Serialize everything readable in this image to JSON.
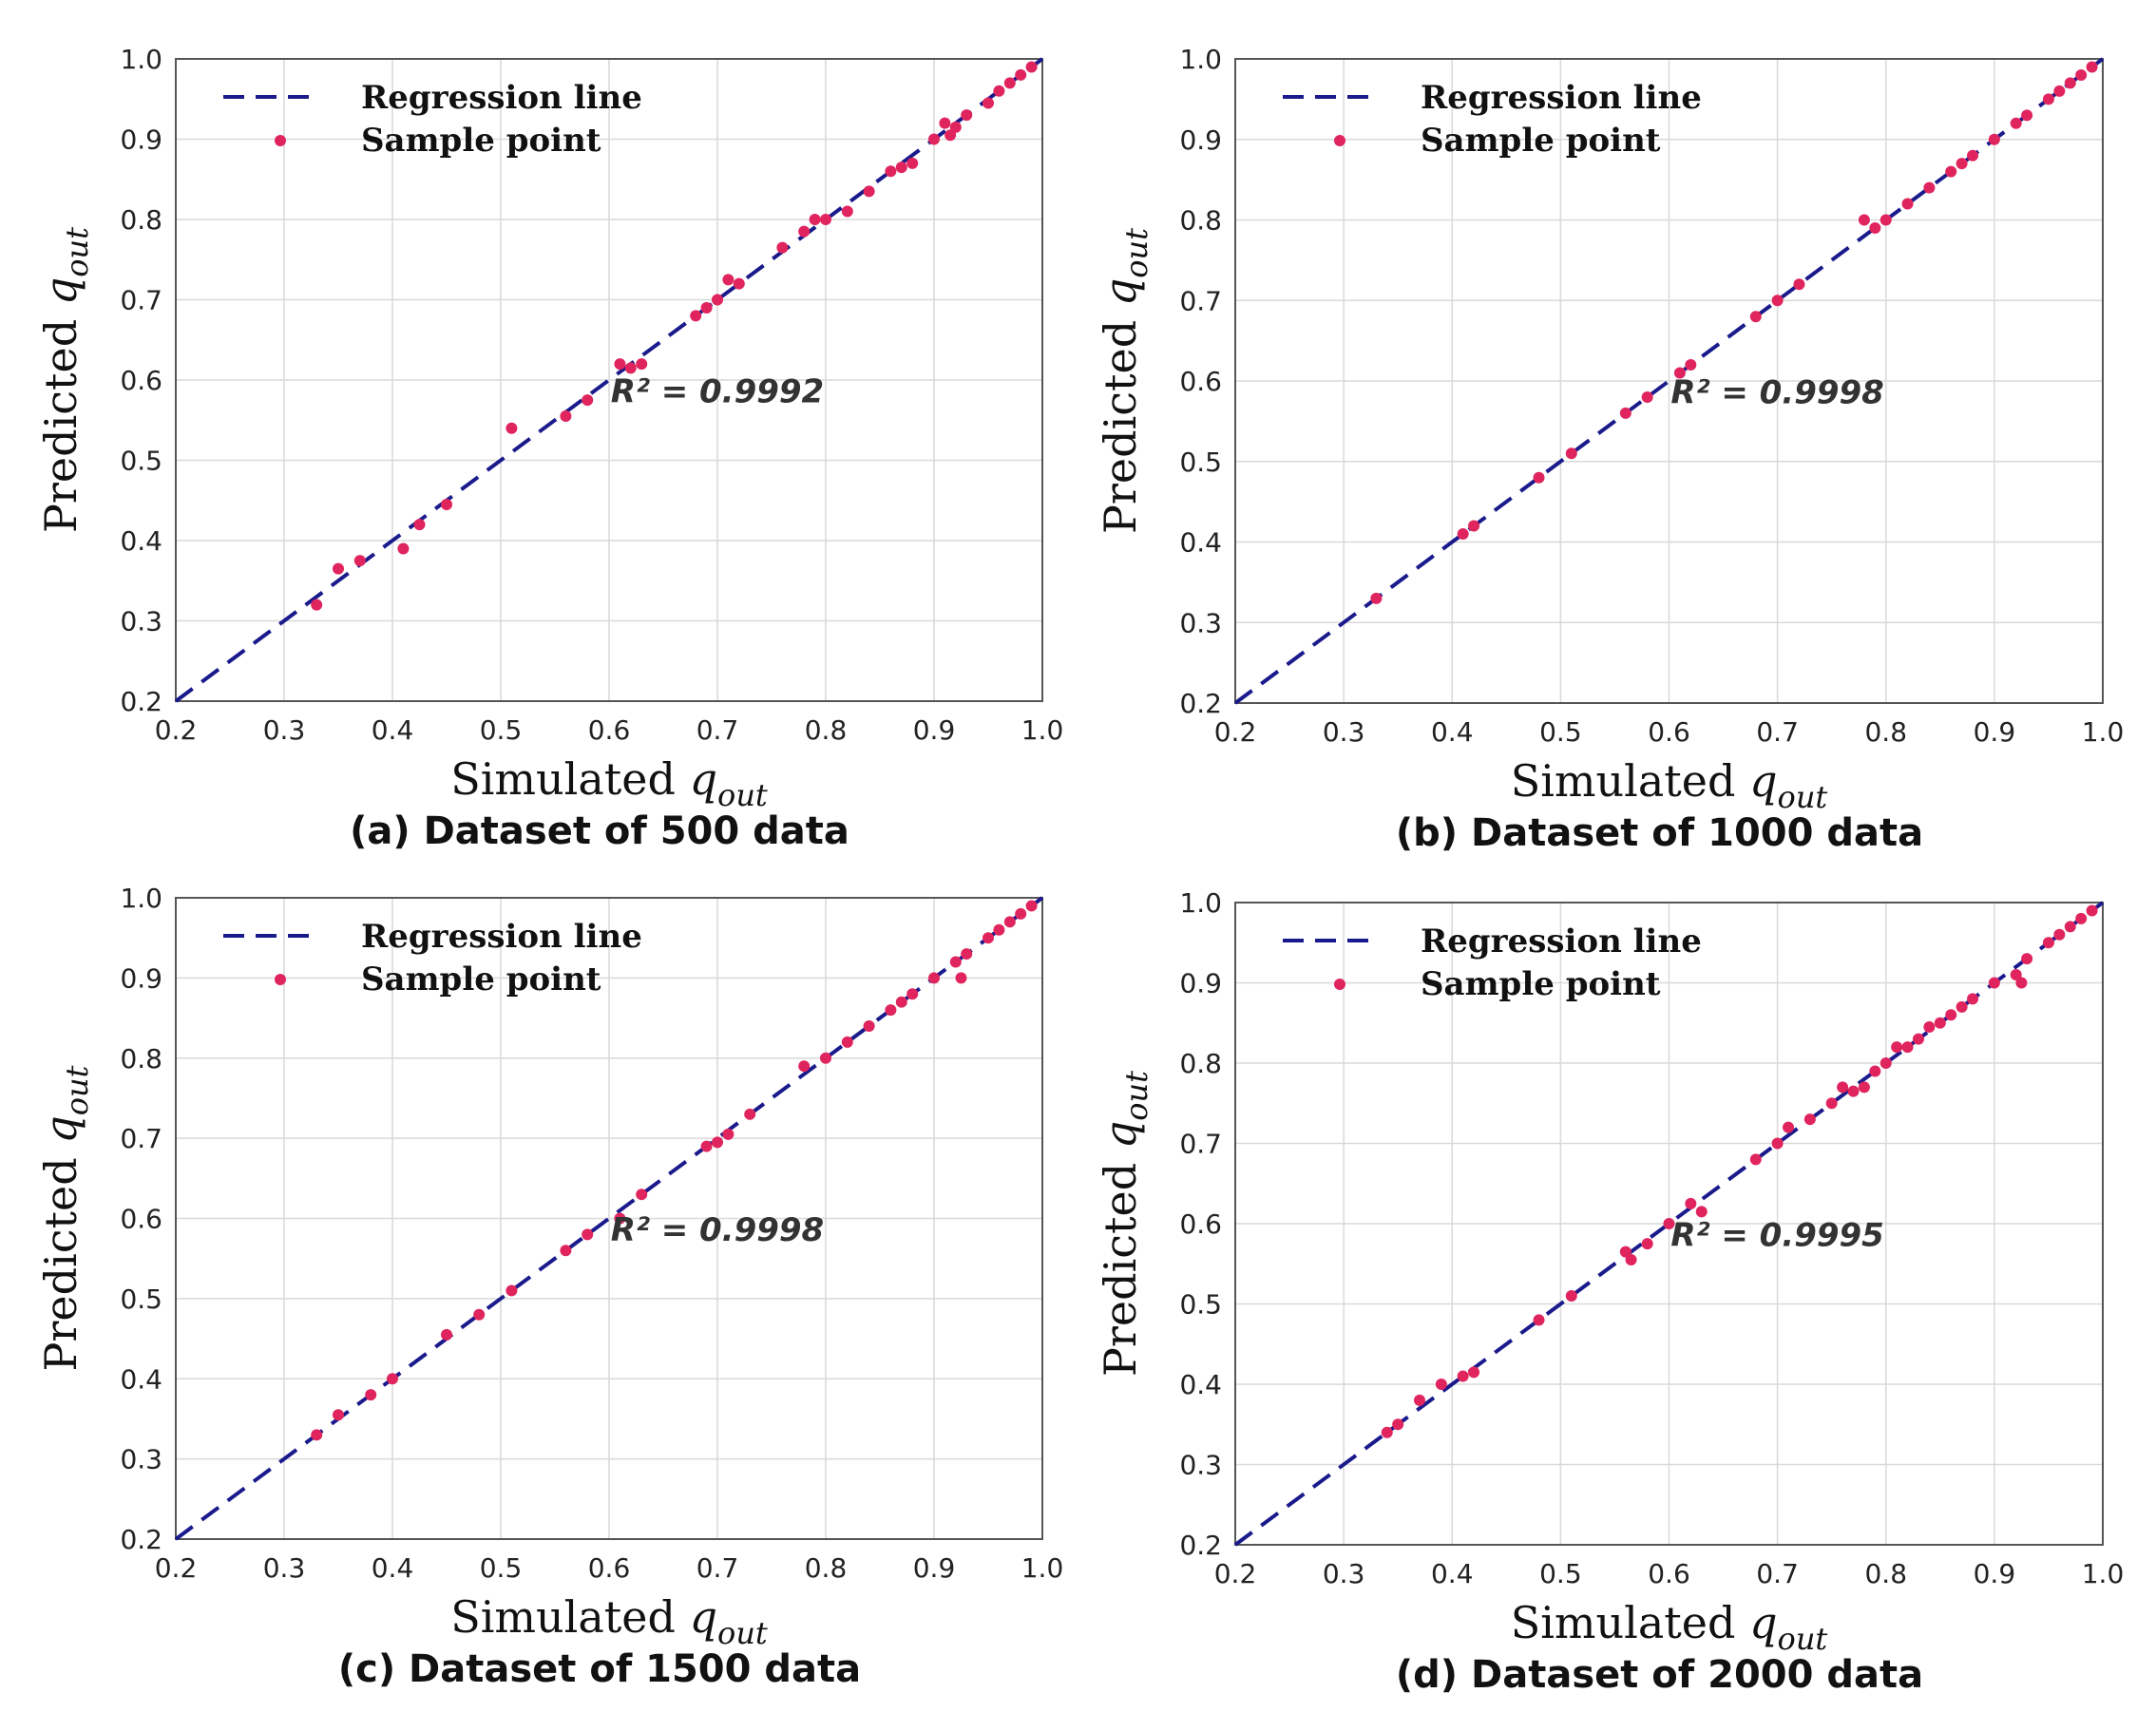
{
  "chart_data": [
    {
      "type": "scatter",
      "panel": "a",
      "caption": "(a) Dataset of 500 data",
      "xlabel": "Simulated",
      "ylabel": "Predicted",
      "label_var": "q",
      "label_sub": "out",
      "xlim": [
        0.2,
        1.0
      ],
      "ylim": [
        0.2,
        1.0
      ],
      "ticks": [
        "0.2",
        "0.3",
        "0.4",
        "0.5",
        "0.6",
        "0.7",
        "0.8",
        "0.9",
        "1.0"
      ],
      "legend": {
        "line": "Regression line",
        "points": "Sample point",
        "placement": "top-left"
      },
      "annotation": "R² = 0.9992",
      "regression": {
        "x": [
          0.2,
          1.0
        ],
        "y": [
          0.2,
          1.0
        ]
      },
      "colors": {
        "line": "#1a1a8c",
        "points": "#e0245e"
      },
      "points": [
        [
          0.33,
          0.32
        ],
        [
          0.35,
          0.365
        ],
        [
          0.37,
          0.375
        ],
        [
          0.41,
          0.39
        ],
        [
          0.425,
          0.42
        ],
        [
          0.45,
          0.445
        ],
        [
          0.51,
          0.54
        ],
        [
          0.56,
          0.555
        ],
        [
          0.58,
          0.575
        ],
        [
          0.61,
          0.62
        ],
        [
          0.62,
          0.615
        ],
        [
          0.63,
          0.62
        ],
        [
          0.68,
          0.68
        ],
        [
          0.69,
          0.69
        ],
        [
          0.7,
          0.7
        ],
        [
          0.71,
          0.725
        ],
        [
          0.72,
          0.72
        ],
        [
          0.76,
          0.765
        ],
        [
          0.78,
          0.785
        ],
        [
          0.79,
          0.8
        ],
        [
          0.8,
          0.8
        ],
        [
          0.82,
          0.81
        ],
        [
          0.84,
          0.835
        ],
        [
          0.86,
          0.86
        ],
        [
          0.87,
          0.865
        ],
        [
          0.88,
          0.87
        ],
        [
          0.9,
          0.9
        ],
        [
          0.91,
          0.92
        ],
        [
          0.915,
          0.905
        ],
        [
          0.92,
          0.915
        ],
        [
          0.93,
          0.93
        ],
        [
          0.95,
          0.945
        ],
        [
          0.96,
          0.96
        ],
        [
          0.97,
          0.97
        ],
        [
          0.98,
          0.98
        ],
        [
          0.99,
          0.99
        ]
      ]
    },
    {
      "type": "scatter",
      "panel": "b",
      "caption": "(b) Dataset of 1000 data",
      "xlabel": "Simulated",
      "ylabel": "Predicted",
      "label_var": "q",
      "label_sub": "out",
      "xlim": [
        0.2,
        1.0
      ],
      "ylim": [
        0.2,
        1.0
      ],
      "ticks": [
        "0.2",
        "0.3",
        "0.4",
        "0.5",
        "0.6",
        "0.7",
        "0.8",
        "0.9",
        "1.0"
      ],
      "legend": {
        "line": "Regression line",
        "points": "Sample point",
        "placement": "top-left"
      },
      "annotation": "R² = 0.9998",
      "regression": {
        "x": [
          0.2,
          1.0
        ],
        "y": [
          0.2,
          1.0
        ]
      },
      "colors": {
        "line": "#1a1a8c",
        "points": "#e0245e"
      },
      "points": [
        [
          0.33,
          0.33
        ],
        [
          0.41,
          0.41
        ],
        [
          0.42,
          0.42
        ],
        [
          0.48,
          0.48
        ],
        [
          0.51,
          0.51
        ],
        [
          0.56,
          0.56
        ],
        [
          0.58,
          0.58
        ],
        [
          0.61,
          0.61
        ],
        [
          0.62,
          0.62
        ],
        [
          0.68,
          0.68
        ],
        [
          0.7,
          0.7
        ],
        [
          0.72,
          0.72
        ],
        [
          0.78,
          0.8
        ],
        [
          0.79,
          0.79
        ],
        [
          0.8,
          0.8
        ],
        [
          0.82,
          0.82
        ],
        [
          0.84,
          0.84
        ],
        [
          0.86,
          0.86
        ],
        [
          0.87,
          0.87
        ],
        [
          0.88,
          0.88
        ],
        [
          0.9,
          0.9
        ],
        [
          0.92,
          0.92
        ],
        [
          0.93,
          0.93
        ],
        [
          0.95,
          0.95
        ],
        [
          0.96,
          0.96
        ],
        [
          0.97,
          0.97
        ],
        [
          0.98,
          0.98
        ],
        [
          0.99,
          0.99
        ]
      ]
    },
    {
      "type": "scatter",
      "panel": "c",
      "caption": "(c) Dataset of 1500 data",
      "xlabel": "Simulated",
      "ylabel": "Predicted",
      "label_var": "q",
      "label_sub": "out",
      "xlim": [
        0.2,
        1.0
      ],
      "ylim": [
        0.2,
        1.0
      ],
      "ticks": [
        "0.2",
        "0.3",
        "0.4",
        "0.5",
        "0.6",
        "0.7",
        "0.8",
        "0.9",
        "1.0"
      ],
      "legend": {
        "line": "Regression line",
        "points": "Sample point",
        "placement": "top-left"
      },
      "annotation": "R² = 0.9998",
      "regression": {
        "x": [
          0.2,
          1.0
        ],
        "y": [
          0.2,
          1.0
        ]
      },
      "colors": {
        "line": "#1a1a8c",
        "points": "#e0245e"
      },
      "points": [
        [
          0.33,
          0.33
        ],
        [
          0.35,
          0.355
        ],
        [
          0.38,
          0.38
        ],
        [
          0.4,
          0.4
        ],
        [
          0.45,
          0.455
        ],
        [
          0.48,
          0.48
        ],
        [
          0.51,
          0.51
        ],
        [
          0.56,
          0.56
        ],
        [
          0.58,
          0.58
        ],
        [
          0.61,
          0.6
        ],
        [
          0.63,
          0.63
        ],
        [
          0.69,
          0.69
        ],
        [
          0.7,
          0.695
        ],
        [
          0.71,
          0.705
        ],
        [
          0.73,
          0.73
        ],
        [
          0.78,
          0.79
        ],
        [
          0.8,
          0.8
        ],
        [
          0.82,
          0.82
        ],
        [
          0.84,
          0.84
        ],
        [
          0.86,
          0.86
        ],
        [
          0.87,
          0.87
        ],
        [
          0.88,
          0.88
        ],
        [
          0.9,
          0.9
        ],
        [
          0.92,
          0.92
        ],
        [
          0.925,
          0.9
        ],
        [
          0.93,
          0.93
        ],
        [
          0.95,
          0.95
        ],
        [
          0.96,
          0.96
        ],
        [
          0.97,
          0.97
        ],
        [
          0.98,
          0.98
        ],
        [
          0.99,
          0.99
        ]
      ]
    },
    {
      "type": "scatter",
      "panel": "d",
      "caption": "(d) Dataset of 2000 data",
      "xlabel": "Simulated",
      "ylabel": "Predicted",
      "label_var": "q",
      "label_sub": "out",
      "xlim": [
        0.2,
        1.0
      ],
      "ylim": [
        0.2,
        1.0
      ],
      "ticks": [
        "0.2",
        "0.3",
        "0.4",
        "0.5",
        "0.6",
        "0.7",
        "0.8",
        "0.9",
        "1.0"
      ],
      "legend": {
        "line": "Regression line",
        "points": "Sample point",
        "placement": "top-left"
      },
      "annotation": "R² = 0.9995",
      "regression": {
        "x": [
          0.2,
          1.0
        ],
        "y": [
          0.2,
          1.0
        ]
      },
      "colors": {
        "line": "#1a1a8c",
        "points": "#e0245e"
      },
      "points": [
        [
          0.34,
          0.34
        ],
        [
          0.35,
          0.35
        ],
        [
          0.37,
          0.38
        ],
        [
          0.39,
          0.4
        ],
        [
          0.41,
          0.41
        ],
        [
          0.42,
          0.415
        ],
        [
          0.48,
          0.48
        ],
        [
          0.51,
          0.51
        ],
        [
          0.56,
          0.565
        ],
        [
          0.565,
          0.555
        ],
        [
          0.58,
          0.575
        ],
        [
          0.6,
          0.6
        ],
        [
          0.62,
          0.625
        ],
        [
          0.63,
          0.615
        ],
        [
          0.68,
          0.68
        ],
        [
          0.7,
          0.7
        ],
        [
          0.71,
          0.72
        ],
        [
          0.73,
          0.73
        ],
        [
          0.75,
          0.75
        ],
        [
          0.76,
          0.77
        ],
        [
          0.77,
          0.765
        ],
        [
          0.78,
          0.77
        ],
        [
          0.79,
          0.79
        ],
        [
          0.8,
          0.8
        ],
        [
          0.81,
          0.82
        ],
        [
          0.82,
          0.82
        ],
        [
          0.83,
          0.83
        ],
        [
          0.84,
          0.845
        ],
        [
          0.85,
          0.85
        ],
        [
          0.86,
          0.86
        ],
        [
          0.87,
          0.87
        ],
        [
          0.88,
          0.88
        ],
        [
          0.9,
          0.9
        ],
        [
          0.92,
          0.91
        ],
        [
          0.925,
          0.9
        ],
        [
          0.93,
          0.93
        ],
        [
          0.95,
          0.95
        ],
        [
          0.96,
          0.96
        ],
        [
          0.97,
          0.97
        ],
        [
          0.98,
          0.98
        ],
        [
          0.99,
          0.99
        ]
      ]
    }
  ]
}
